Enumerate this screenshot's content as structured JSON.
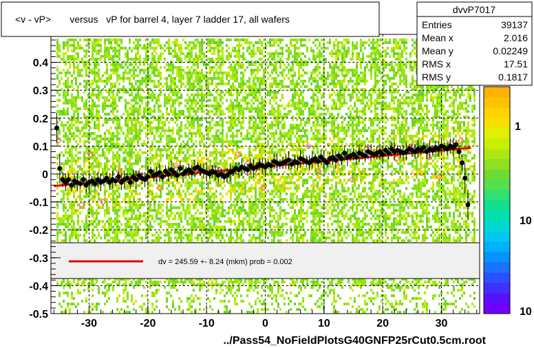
{
  "title": "<v - vP>       versus   vP for barrel 4, layer 7 ladder 17, all wafers",
  "xaxis_caption": "../Pass54_NoFieldPlotsG40GNFP25rCut0.5cm.root",
  "stats": {
    "name": "dvvP7017",
    "rows": [
      {
        "label": "Entries",
        "value": "39137"
      },
      {
        "label": "Mean x",
        "value": "2.016"
      },
      {
        "label": "Mean y",
        "value": "0.02249"
      },
      {
        "label": "RMS x",
        "value": "17.51"
      },
      {
        "label": "RMS y",
        "value": "0.1817"
      }
    ]
  },
  "fit_legend": "dv =  245.59 +-  8.24 (mkm) prob = 0.002",
  "colors": {
    "fit_line": "#e00000",
    "profile_points": "#000000",
    "open_markers": "#ff6666",
    "legend_box": "#f0f0f0",
    "green": "#7ddc1f",
    "yellow_green": "#c8f000"
  },
  "chart_data": {
    "type": "heatmap",
    "xlim": [
      -36.5,
      36.5
    ],
    "ylim": [
      -0.5,
      0.5
    ],
    "x_ticks": [
      -30,
      -20,
      -10,
      0,
      10,
      20,
      30
    ],
    "y_ticks": [
      -0.5,
      -0.4,
      -0.3,
      -0.2,
      -0.1,
      0,
      0.1,
      0.2,
      0.3,
      0.4
    ],
    "x_tick_labels": [
      "-30",
      "-20",
      "-10",
      "0",
      "10",
      "20",
      "30"
    ],
    "y_tick_labels": [
      "-0.5",
      "-0.4",
      "-0.3",
      "-0.2",
      "-0.1",
      "0",
      "0.1",
      "0.2",
      "0.3",
      "0.4"
    ],
    "z_tick_labels": [
      "1",
      "10",
      "10"
    ],
    "grid": true,
    "fit_line": {
      "x": [
        -36,
        35
      ],
      "y": [
        -0.043,
        0.094
      ]
    },
    "profile": {
      "x": [
        -35.5,
        -35,
        -34.5,
        -34,
        -33.5,
        -33,
        -32.5,
        -32,
        -31.5,
        -31,
        -30.5,
        -30,
        -29.5,
        -29,
        -28.5,
        -28,
        -27.5,
        -27,
        -26.5,
        -26,
        -25.5,
        -25,
        -24.5,
        -24,
        -23.5,
        -23,
        -22.5,
        -22,
        -21.5,
        -21,
        -20.5,
        -20,
        -19.5,
        -19,
        -18.5,
        -18,
        -17.5,
        -17,
        -16.5,
        -16,
        -15.5,
        -15,
        -14.5,
        -14,
        -13.5,
        -13,
        -12.5,
        -12,
        -11.5,
        -11,
        -10.5,
        -10,
        -9.5,
        -9,
        -8.5,
        -8,
        -7.5,
        -7,
        -6.5,
        -6,
        -5.5,
        -5,
        -4.5,
        -4,
        -3.5,
        -3,
        -2.5,
        -2,
        -1.5,
        -1,
        -0.5,
        0,
        0.5,
        1,
        1.5,
        2,
        2.5,
        3,
        3.5,
        4,
        4.5,
        5,
        5.5,
        6,
        6.5,
        7,
        7.5,
        8,
        8.5,
        9,
        9.5,
        10,
        10.5,
        11,
        11.5,
        12,
        12.5,
        13,
        13.5,
        14,
        14.5,
        15,
        15.5,
        16,
        16.5,
        17,
        17.5,
        18,
        18.5,
        19,
        19.5,
        20,
        20.5,
        21,
        21.5,
        22,
        22.5,
        23,
        23.5,
        24,
        24.5,
        25,
        25.5,
        26,
        26.5,
        27,
        27.5,
        28,
        28.5,
        29,
        29.5,
        30,
        30.5,
        31,
        31.5,
        32,
        32.5,
        33,
        33.5,
        34,
        34.5,
        35
      ],
      "y": [
        0.165,
        0.02,
        -0.02,
        -0.03,
        -0.02,
        -0.04,
        -0.025,
        -0.03,
        -0.035,
        -0.02,
        -0.04,
        -0.03,
        -0.025,
        -0.035,
        -0.02,
        -0.03,
        -0.025,
        -0.015,
        -0.03,
        -0.02,
        -0.025,
        -0.01,
        -0.03,
        -0.02,
        -0.015,
        -0.03,
        -0.01,
        -0.02,
        -0.005,
        -0.015,
        -0.02,
        -0.01,
        0.01,
        -0.005,
        0.0,
        0.005,
        -0.01,
        0.01,
        0.0,
        0.015,
        0.005,
        -0.005,
        0.02,
        0.0,
        0.01,
        0.015,
        0.005,
        0.02,
        0.025,
        0.015,
        0.01,
        0.005,
        0.0,
        0.01,
        0.005,
        -0.005,
        0.0,
        -0.01,
        -0.005,
        0.005,
        0.01,
        0.02,
        0.015,
        0.025,
        0.02,
        0.015,
        0.03,
        0.02,
        0.025,
        0.035,
        0.03,
        0.025,
        0.035,
        0.03,
        0.045,
        0.04,
        0.035,
        0.04,
        0.045,
        0.05,
        0.035,
        0.045,
        0.04,
        0.055,
        0.05,
        0.045,
        0.04,
        0.05,
        0.055,
        0.045,
        0.06,
        0.05,
        0.04,
        0.055,
        0.06,
        0.05,
        0.065,
        0.055,
        0.075,
        0.06,
        0.065,
        0.07,
        0.06,
        0.075,
        0.07,
        0.065,
        0.08,
        0.075,
        0.07,
        0.075,
        0.08,
        0.07,
        0.085,
        0.075,
        0.09,
        0.08,
        0.085,
        0.08,
        0.075,
        0.08,
        0.09,
        0.085,
        0.08,
        0.09,
        0.085,
        0.095,
        0.08,
        0.09,
        0.085,
        0.095,
        0.09,
        0.1,
        0.095,
        0.09,
        0.1,
        0.095,
        0.105,
        0.08,
        0.04,
        -0.015,
        -0.11
      ]
    },
    "open_markers": {
      "x": [
        -35.2,
        -31.3,
        -29.8,
        -27.6,
        -24.9,
        -21.6,
        -18.0,
        -15.2,
        -12.1,
        -9.3,
        -7.8,
        -4.6,
        -2.9,
        -0.3,
        2.1,
        4.5,
        7.3,
        9.1,
        12.6,
        14.8,
        17.3,
        19.9,
        22.4,
        25.1,
        27.9,
        29.6,
        31.7,
        33.3
      ],
      "y": [
        0.12,
        -0.11,
        0.07,
        -0.1,
        0.01,
        0.0,
        -0.05,
        0.03,
        0.01,
        0.02,
        0.015,
        0.07,
        0.04,
        -0.05,
        0.035,
        0.045,
        0.1,
        0.01,
        0.04,
        -0.02,
        0.09,
        0.08,
        0.055,
        0.1,
        0.06,
        -0.01,
        0.11,
        0.12
      ]
    }
  }
}
